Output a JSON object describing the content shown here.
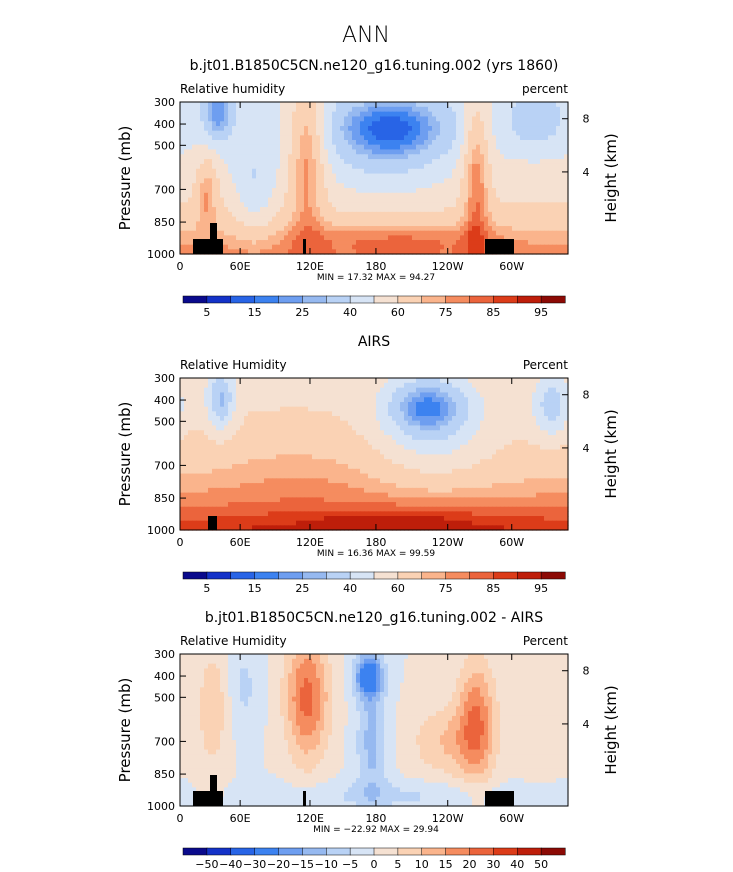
{
  "page_title": "ANN",
  "chart_data": [
    {
      "type": "heatmap",
      "title": "b.jt01.B1850C5CN.ne120_g16.tuning.002 (yrs 1860)",
      "left_label": "Relative humidity",
      "right_label": "percent",
      "ylabel": "Pressure (mb)",
      "y2label": "Height (km)",
      "x_ticks": [
        "0",
        "60E",
        "120E",
        "180",
        "120W",
        "60W"
      ],
      "y_ticks": [
        "300",
        "400",
        "500",
        "700",
        "850",
        "1000"
      ],
      "y2_ticks": [
        "8",
        "4"
      ],
      "min_max": "MIN =  17.32  MAX =  94.27",
      "colorbar_labels": [
        "5",
        "15",
        "25",
        "40",
        "60",
        "75",
        "85",
        "95"
      ],
      "colorbar_colors": [
        "#0a0a8c",
        "#1432c8",
        "#2864e6",
        "#3c82f0",
        "#6e9ef0",
        "#96b9f0",
        "#b9d2f5",
        "#d7e4f5",
        "#f5e1d2",
        "#fad2b4",
        "#fab48c",
        "#f58c5f",
        "#eb643c",
        "#dc3c19",
        "#be1e0a",
        "#8c0a05"
      ],
      "field_type": "rh_model",
      "value_range": [
        17.32,
        94.27
      ]
    },
    {
      "type": "heatmap",
      "title": "AIRS",
      "left_label": "Relative Humidity",
      "right_label": "Percent",
      "ylabel": "Pressure (mb)",
      "y2label": "Height (km)",
      "x_ticks": [
        "0",
        "60E",
        "120E",
        "180",
        "120W",
        "60W"
      ],
      "y_ticks": [
        "300",
        "400",
        "500",
        "700",
        "850",
        "1000"
      ],
      "y2_ticks": [
        "8",
        "4"
      ],
      "min_max": "MIN =  16.36  MAX =  99.59",
      "colorbar_labels": [
        "5",
        "15",
        "25",
        "40",
        "60",
        "75",
        "85",
        "95"
      ],
      "colorbar_colors": [
        "#0a0a8c",
        "#1432c8",
        "#2864e6",
        "#3c82f0",
        "#6e9ef0",
        "#96b9f0",
        "#b9d2f5",
        "#d7e4f5",
        "#f5e1d2",
        "#fad2b4",
        "#fab48c",
        "#f58c5f",
        "#eb643c",
        "#dc3c19",
        "#be1e0a",
        "#8c0a05"
      ],
      "field_type": "rh_obs",
      "value_range": [
        16.36,
        99.59
      ]
    },
    {
      "type": "heatmap",
      "title": "b.jt01.B1850C5CN.ne120_g16.tuning.002 - AIRS",
      "left_label": "Relative Humidity",
      "right_label": "Percent",
      "ylabel": "Pressure (mb)",
      "y2label": "Height (km)",
      "x_ticks": [
        "0",
        "60E",
        "120E",
        "180",
        "120W",
        "60W"
      ],
      "y_ticks": [
        "300",
        "400",
        "500",
        "700",
        "850",
        "1000"
      ],
      "y2_ticks": [
        "8",
        "4"
      ],
      "min_max": "MIN = −22.92  MAX =  29.94",
      "colorbar_labels": [
        "−50",
        "−40",
        "−30",
        "−20",
        "−15",
        "−10",
        "−5",
        "0",
        "5",
        "10",
        "15",
        "20",
        "30",
        "40",
        "50"
      ],
      "colorbar_colors": [
        "#0a0a8c",
        "#1432c8",
        "#2864e6",
        "#3c82f0",
        "#6e9ef0",
        "#96b9f0",
        "#b9d2f5",
        "#d7e4f5",
        "#f5e1d2",
        "#fad2b4",
        "#fab48c",
        "#f58c5f",
        "#eb643c",
        "#dc3c19",
        "#be1e0a",
        "#8c0a05"
      ],
      "field_type": "rh_diff",
      "value_range": [
        -22.92,
        29.94
      ]
    }
  ]
}
